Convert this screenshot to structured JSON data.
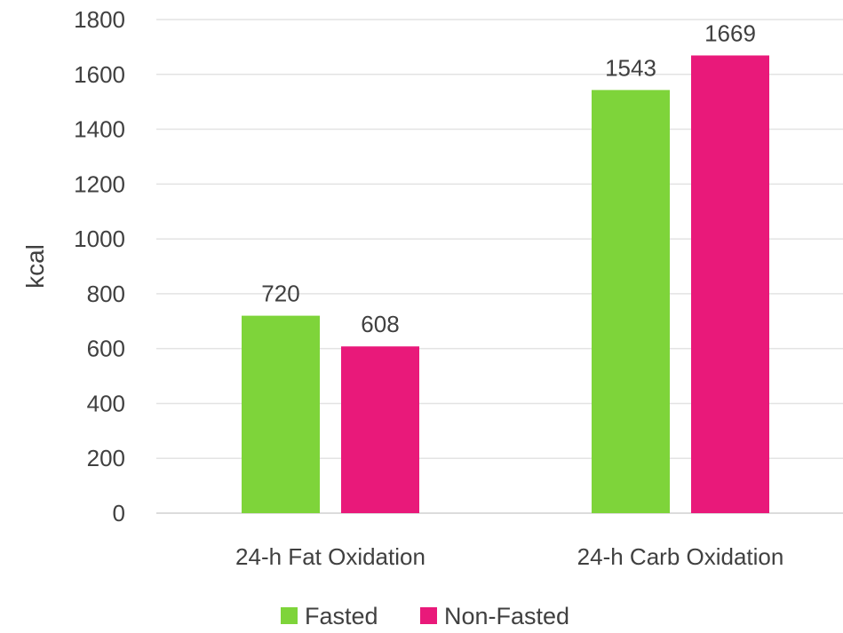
{
  "chart_data": {
    "type": "bar",
    "categories": [
      "24-h Fat Oxidation",
      "24-h Carb Oxidation"
    ],
    "series": [
      {
        "name": "Fasted",
        "values": [
          720,
          1543
        ],
        "color": "#7ED43A"
      },
      {
        "name": "Non-Fasted",
        "values": [
          608,
          1669
        ],
        "color": "#E9197A"
      }
    ],
    "title": "",
    "xlabel": "",
    "ylabel": "kcal",
    "ylim": [
      0,
      1800
    ],
    "yticks": [
      0,
      200,
      400,
      600,
      800,
      1000,
      1200,
      1400,
      1600,
      1800
    ],
    "grid": true,
    "data_labels": true,
    "legend_position": "bottom"
  }
}
